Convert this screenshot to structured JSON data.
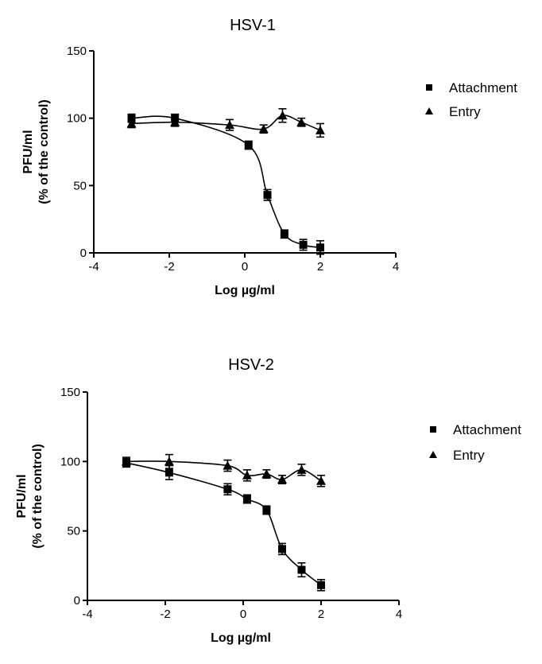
{
  "chart_data": [
    {
      "type": "scatter",
      "title": "HSV-1",
      "xlabel": "Log µg/ml",
      "ylabel_line1": "PFU/ml",
      "ylabel_line2": "(% of the control)",
      "xlim": [
        -4,
        4
      ],
      "ylim": [
        0,
        150
      ],
      "xticks": [
        "-4",
        "-2",
        "0",
        "2",
        "4"
      ],
      "yticks": [
        "0",
        "50",
        "100",
        "150"
      ],
      "grid": false,
      "legend_position": "right",
      "series": [
        {
          "name": "Attachment",
          "marker": "square",
          "x": [
            -3,
            -1.85,
            0.1,
            0.6,
            1.05,
            1.55,
            2.0
          ],
          "y": [
            100,
            100,
            80,
            43,
            14,
            6,
            4
          ],
          "err": [
            3,
            3,
            3,
            4,
            3,
            4,
            5
          ]
        },
        {
          "name": "Entry",
          "marker": "triangle",
          "x": [
            -3,
            -1.85,
            -0.4,
            0.5,
            1.0,
            1.5,
            2.0
          ],
          "y": [
            96,
            97,
            95,
            92,
            102,
            97,
            91
          ],
          "err": [
            3,
            3,
            4,
            3,
            5,
            3,
            5
          ]
        }
      ]
    },
    {
      "type": "scatter",
      "title": "HSV-2",
      "xlabel": "Log µg/ml",
      "ylabel_line1": "PFU/ml",
      "ylabel_line2": "(% of the control)",
      "xlim": [
        -4,
        4
      ],
      "ylim": [
        0,
        150
      ],
      "xticks": [
        "-4",
        "-2",
        "0",
        "2",
        "4"
      ],
      "yticks": [
        "0",
        "50",
        "100",
        "150"
      ],
      "grid": false,
      "legend_position": "right",
      "series": [
        {
          "name": "Attachment",
          "marker": "square",
          "x": [
            -3,
            -1.9,
            -0.4,
            0.1,
            0.6,
            1.0,
            1.5,
            2.0
          ],
          "y": [
            99,
            92,
            80,
            73,
            65,
            37,
            22,
            11
          ],
          "err": [
            3,
            5,
            4,
            3,
            3,
            4,
            5,
            4
          ]
        },
        {
          "name": "Entry",
          "marker": "triangle",
          "x": [
            -3,
            -1.9,
            -0.4,
            0.1,
            0.6,
            1.0,
            1.5,
            2.0
          ],
          "y": [
            100,
            100,
            97,
            90,
            91,
            87,
            94,
            86
          ],
          "err": [
            3,
            5,
            4,
            4,
            3,
            3,
            4,
            4
          ]
        }
      ]
    }
  ]
}
